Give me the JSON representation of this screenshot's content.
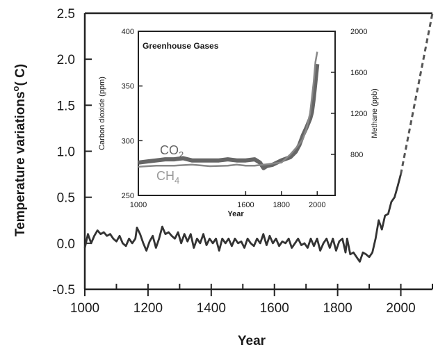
{
  "chart_data": [
    {
      "type": "line",
      "xlabel": "Year",
      "ylabel_main": "Temperature variations",
      "ylabel_unit": "( C)",
      "ylabel_degree": "o",
      "xlim": [
        1000,
        2100
      ],
      "ylim": [
        -0.5,
        2.5
      ],
      "xticks": [
        1000,
        1200,
        1400,
        1600,
        1800,
        2000
      ],
      "yticks": [
        -0.5,
        0.0,
        0.5,
        1.0,
        1.5,
        2.0,
        2.5
      ],
      "ytick_labels": [
        "-0.5",
        "0.0",
        "0.5",
        "1.0",
        "1.5",
        "2.0",
        "2.5"
      ],
      "series": [
        {
          "color": "#333333",
          "x": [
            1000,
            1010,
            1020,
            1030,
            1040,
            1050,
            1060,
            1070,
            1080,
            1090,
            1100,
            1110,
            1120,
            1130,
            1140,
            1150,
            1160,
            1165,
            1175,
            1185,
            1195,
            1205,
            1215,
            1225,
            1235,
            1245,
            1255,
            1265,
            1275,
            1285,
            1295,
            1305,
            1315,
            1325,
            1335,
            1345,
            1355,
            1365,
            1375,
            1385,
            1395,
            1405,
            1415,
            1425,
            1435,
            1445,
            1455,
            1465,
            1475,
            1485,
            1495,
            1505,
            1515,
            1525,
            1535,
            1545,
            1555,
            1565,
            1575,
            1585,
            1595,
            1605,
            1615,
            1625,
            1635,
            1645,
            1655,
            1665,
            1675,
            1685,
            1695,
            1705,
            1715,
            1725,
            1735,
            1745,
            1755,
            1765,
            1775,
            1785,
            1795,
            1805,
            1815,
            1825,
            1830,
            1840,
            1850,
            1860,
            1870,
            1880,
            1890,
            1900,
            1910,
            1920,
            1930,
            1940,
            1950,
            1960,
            1970,
            1980,
            1990,
            2000
          ],
          "y": [
            -0.05,
            0.1,
            0.0,
            0.08,
            0.14,
            0.1,
            0.12,
            0.08,
            0.1,
            0.05,
            0.02,
            0.08,
            0.0,
            -0.03,
            0.05,
            0.0,
            0.05,
            0.17,
            0.1,
            0.0,
            -0.08,
            0.02,
            0.08,
            -0.05,
            0.05,
            0.18,
            0.1,
            0.12,
            0.08,
            0.05,
            0.12,
            0.0,
            0.1,
            0.02,
            0.1,
            -0.05,
            0.05,
            0.0,
            0.1,
            -0.02,
            0.05,
            0.0,
            0.05,
            -0.08,
            0.05,
            0.0,
            0.05,
            -0.03,
            0.05,
            0.0,
            0.02,
            -0.05,
            0.05,
            0.0,
            -0.03,
            0.05,
            0.0,
            0.1,
            -0.02,
            0.08,
            0.0,
            0.05,
            -0.03,
            0.02,
            0.0,
            0.05,
            -0.05,
            0.0,
            0.05,
            -0.02,
            0.0,
            -0.05,
            0.05,
            -0.03,
            0.05,
            -0.08,
            0.0,
            0.05,
            -0.05,
            0.05,
            -0.08,
            0.02,
            0.05,
            -0.1,
            0.05,
            -0.12,
            -0.1,
            -0.15,
            -0.2,
            -0.1,
            -0.12,
            -0.15,
            -0.1,
            0.05,
            0.25,
            0.15,
            0.3,
            0.32,
            0.45,
            0.5,
            0.62,
            0.75
          ]
        },
        {
          "color": "#555555",
          "dashed": true,
          "x": [
            2000,
            2100
          ],
          "y": [
            0.75,
            2.5
          ]
        }
      ]
    },
    {
      "type": "line",
      "title": "Greenhouse Gases",
      "xlabel": "Year",
      "ylabel_left": "Carbon dioxide (ppm)",
      "ylabel_right": "Methane (ppb)",
      "xlim": [
        1000,
        2100
      ],
      "ylim_left": [
        250,
        400
      ],
      "ylim_right": [
        400,
        2000
      ],
      "xticks": [
        1000,
        1600,
        1800,
        2000
      ],
      "yticks_left": [
        250,
        300,
        350,
        400
      ],
      "yticks_right": [
        800,
        1200,
        1600,
        2000
      ],
      "series": [
        {
          "name": "CO2",
          "label_main": "CO",
          "label_sub": "2",
          "axis": "left",
          "color": "#666666",
          "x": [
            1000,
            1050,
            1100,
            1150,
            1200,
            1250,
            1300,
            1350,
            1400,
            1450,
            1500,
            1550,
            1600,
            1650,
            1680,
            1700,
            1720,
            1750,
            1800,
            1850,
            1880,
            1900,
            1920,
            1940,
            1960,
            1970,
            1980,
            1990,
            2000
          ],
          "y": [
            280,
            281,
            282,
            283,
            283,
            284,
            282,
            282,
            282,
            282,
            283,
            282,
            282,
            283,
            280,
            275,
            277,
            278,
            282,
            285,
            290,
            296,
            305,
            312,
            320,
            326,
            338,
            354,
            370
          ]
        },
        {
          "name": "CH4",
          "label_main": "CH",
          "label_sub": "4",
          "axis": "right",
          "color": "#888888",
          "x": [
            1000,
            1100,
            1200,
            1300,
            1400,
            1500,
            1550,
            1600,
            1650,
            1700,
            1750,
            1800,
            1850,
            1880,
            1900,
            1920,
            1940,
            1960,
            1970,
            1980,
            1990,
            2000
          ],
          "y": [
            680,
            690,
            690,
            700,
            685,
            690,
            700,
            690,
            690,
            700,
            710,
            720,
            800,
            860,
            900,
            950,
            1050,
            1200,
            1350,
            1500,
            1700,
            1800
          ]
        }
      ]
    }
  ]
}
